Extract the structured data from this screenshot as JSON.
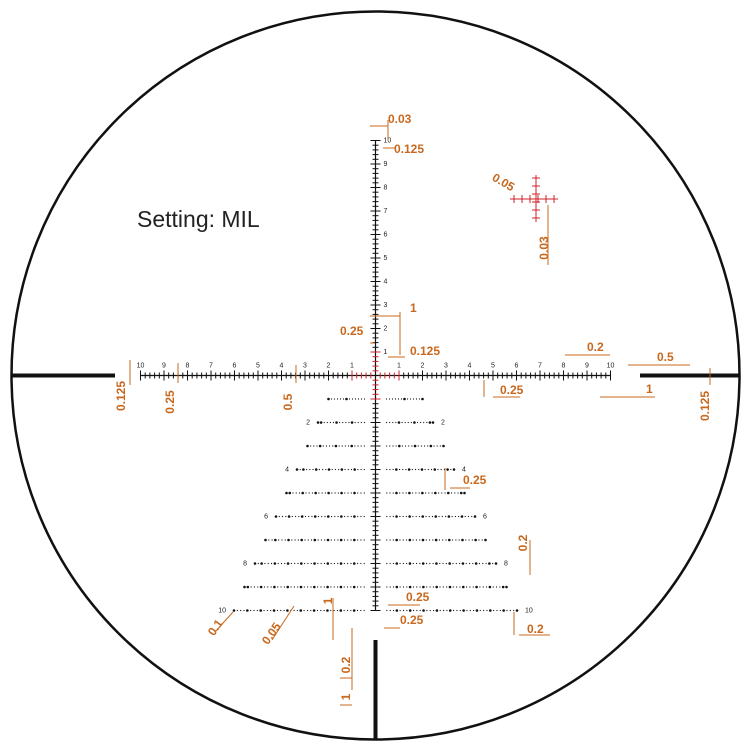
{
  "title": "Setting: MIL",
  "horizontal_scale": {
    "left": [
      "1",
      "2",
      "3",
      "4",
      "5",
      "6",
      "7",
      "8",
      "9",
      "10"
    ],
    "right": [
      "1",
      "2",
      "3",
      "4",
      "5",
      "6",
      "7",
      "8",
      "9",
      "10"
    ]
  },
  "vertical_scale": [
    "1",
    "2",
    "3",
    "4",
    "5",
    "6",
    "7",
    "8",
    "9",
    "10"
  ],
  "tree_labels": {
    "left": [
      "2",
      "4",
      "6",
      "8",
      "10"
    ],
    "right": [
      "2",
      "4",
      "6",
      "8",
      "10"
    ]
  },
  "annotations": [
    "0.03",
    "0.125",
    "0.05",
    "0.03",
    "1",
    "0.25",
    "0.125",
    "0.2",
    "0.5",
    "0.125",
    "0.25",
    "0.5",
    "0.25",
    "1",
    "0.125",
    "0.25",
    "0.2",
    "0.25",
    "0.25",
    "0.2",
    "0.1",
    "0.05",
    "1",
    "0.2",
    "1"
  ]
}
